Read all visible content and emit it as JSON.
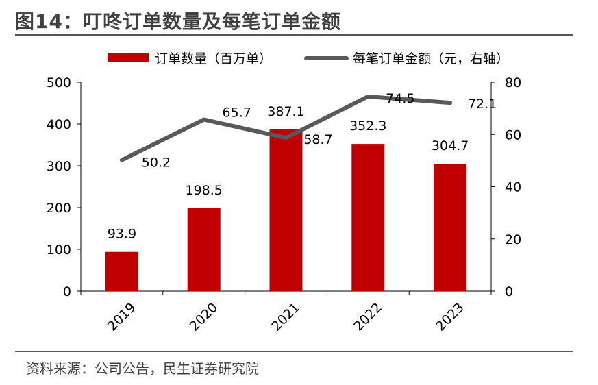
{
  "figure": {
    "title": "图14：叮咚订单数量及每笔订单金额",
    "source": "资料来源：公司公告，民生证券研究院"
  },
  "colors": {
    "bar": "#C00000",
    "line": "#595959",
    "rule": "#555555"
  },
  "chart_data": {
    "type": "bar",
    "categories": [
      "2019",
      "2020",
      "2021",
      "2022",
      "2023"
    ],
    "series": [
      {
        "name": "订单数量（百万单）",
        "type": "bar",
        "axis": "left",
        "values": [
          93.9,
          198.5,
          387.1,
          352.3,
          304.7
        ],
        "labels": [
          "93.9",
          "198.5",
          "387.1",
          "352.3",
          "304.7"
        ]
      },
      {
        "name": "每笔订单金额（元，右轴）",
        "type": "line",
        "axis": "right",
        "values": [
          50.2,
          65.7,
          58.7,
          74.5,
          72.1
        ],
        "labels": [
          "50.2",
          "65.7",
          "58.7",
          "74.5",
          "72.1"
        ]
      }
    ],
    "y_left": {
      "min": 0,
      "max": 500,
      "ticks": [
        "0",
        "100",
        "200",
        "300",
        "400",
        "500"
      ]
    },
    "y_right": {
      "min": 0,
      "max": 80,
      "ticks": [
        "0",
        "20",
        "40",
        "60",
        "80"
      ]
    },
    "legend_position": "top",
    "grid": false
  }
}
